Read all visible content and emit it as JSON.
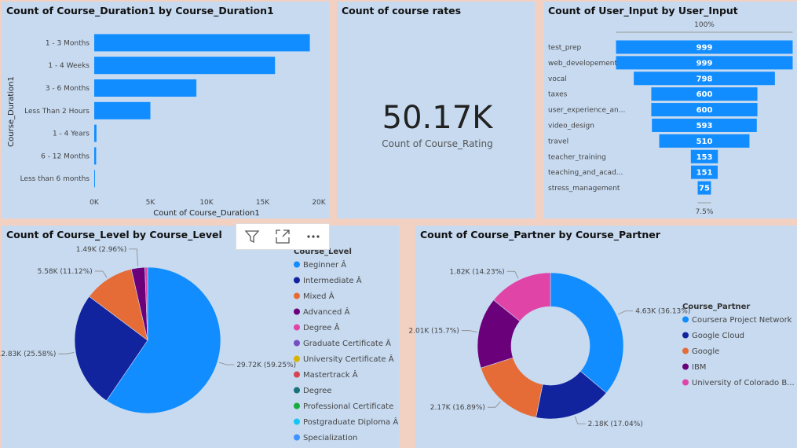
{
  "duration_chart": {
    "title": "Count of Course_Duration1 by Course_Duration1",
    "chart_data": {
      "type": "bar",
      "orientation": "horizontal",
      "categories": [
        "1 - 3 Months",
        "1 - 4 Weeks",
        "3 - 6 Months",
        "Less Than 2 Hours",
        "1 - 4 Years",
        "6 - 12 Months",
        "Less than 6 months"
      ],
      "values": [
        19200,
        16100,
        9100,
        5000,
        200,
        170,
        60
      ],
      "xlabel": "Count of Course_Duration1",
      "ylabel": "Course_Duration1",
      "xlim": [
        0,
        20000
      ],
      "xticks": [
        "0K",
        "5K",
        "10K",
        "15K",
        "20K"
      ],
      "color": "#118dff"
    }
  },
  "card": {
    "title": "Count of course rates",
    "value": "50.17K",
    "label": "Count of Course_Rating"
  },
  "funnel_chart": {
    "title": "Count of User_Input by User_Input",
    "top_pct": "100%",
    "bottom_pct": "7.5%",
    "chart_data": {
      "type": "bar",
      "subtype": "funnel",
      "categories": [
        "test_prep",
        "web_developement",
        "vocal",
        "taxes",
        "user_experience_an...",
        "video_design",
        "travel",
        "teacher_training",
        "teaching_and_acad...",
        "stress_management"
      ],
      "values": [
        999,
        999,
        798,
        600,
        600,
        593,
        510,
        153,
        151,
        75
      ],
      "labels": [
        "999",
        "999",
        "798",
        "600",
        "600",
        "593",
        "510",
        "153",
        "151",
        "75"
      ],
      "color": "#118dff"
    }
  },
  "level_chart": {
    "title": "Count of Course_Level by Course_Level",
    "legend_title": "Course_Level",
    "chart_data": {
      "type": "pie",
      "categories": [
        "Beginner Â",
        "Intermediate Â",
        "Mixed Â",
        "Advanced Â",
        "Degree Â"
      ],
      "values": [
        29720,
        12830,
        5580,
        1490,
        300
      ],
      "data_labels": [
        "29.72K (59.25%)",
        "12.83K (25.58%)",
        "5.58K (11.12%)",
        "1.49K (2.96%)",
        ""
      ],
      "legend": [
        "Beginner Â",
        "Intermediate Â",
        "Mixed Â",
        "Advanced Â",
        "Degree Â",
        "Graduate Certificate Â",
        "University Certificate Â",
        "Mastertrack Â",
        "Degree",
        "Professional Certificate",
        "Postgraduate Diploma Â",
        "Specialization"
      ],
      "legend_colors": [
        "#118dff",
        "#12239e",
        "#e66c37",
        "#6b007b",
        "#e044a7",
        "#744ec2",
        "#d9b300",
        "#d64550",
        "#197278",
        "#1aab40",
        "#15c6f4",
        "#4092ff"
      ]
    }
  },
  "partner_chart": {
    "title": "Count of Course_Partner by Course_Partner",
    "legend_title": "Course_Partner",
    "chart_data": {
      "type": "pie",
      "subtype": "donut",
      "categories": [
        "Coursera Project Network",
        "Google Cloud",
        "Google",
        "IBM",
        "University of Colorado B..."
      ],
      "values": [
        4630,
        2180,
        2170,
        2010,
        1820
      ],
      "data_labels": [
        "4.63K (36.13%)",
        "2.18K (17.04%)",
        "2.17K (16.89%)",
        "2.01K (15.7%)",
        "1.82K (14.23%)"
      ],
      "colors": [
        "#118dff",
        "#12239e",
        "#e66c37",
        "#6b007b",
        "#e044a7"
      ]
    }
  },
  "toolbar": {
    "filter_icon": "filter-icon",
    "focus_icon": "focus-mode-icon",
    "more_icon": "more-options-icon"
  }
}
